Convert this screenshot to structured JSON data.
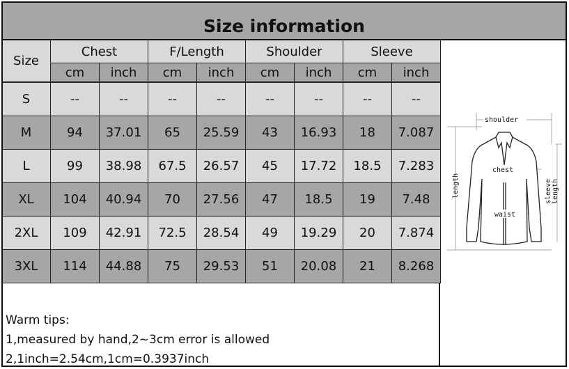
{
  "title": "Size information",
  "headers": {
    "size": "Size",
    "groups": [
      "Chest",
      "F/Length",
      "Shoulder",
      "Sleeve"
    ],
    "units": [
      "cm",
      "inch"
    ]
  },
  "rows": [
    {
      "size": "S",
      "values": [
        "--",
        "--",
        "--",
        "--",
        "--",
        "--",
        "--",
        "--"
      ]
    },
    {
      "size": "M",
      "values": [
        "94",
        "37.01",
        "65",
        "25.59",
        "43",
        "16.93",
        "18",
        "7.087"
      ]
    },
    {
      "size": "L",
      "values": [
        "99",
        "38.98",
        "67.5",
        "26.57",
        "45",
        "17.72",
        "18.5",
        "7.283"
      ]
    },
    {
      "size": "XL",
      "values": [
        "104",
        "40.94",
        "70",
        "27.56",
        "47",
        "18.5",
        "19",
        "7.48"
      ]
    },
    {
      "size": "2XL",
      "values": [
        "109",
        "42.91",
        "72.5",
        "28.54",
        "49",
        "19.29",
        "20",
        "7.874"
      ]
    },
    {
      "size": "3XL",
      "values": [
        "114",
        "44.88",
        "75",
        "29.53",
        "51",
        "20.08",
        "21",
        "8.268"
      ]
    }
  ],
  "diagram": {
    "shoulder": "shoulder",
    "chest": "chest",
    "waist": "waist",
    "length": "length",
    "sleeve": "sleeve",
    "sleeve_length": "length"
  },
  "notes": [
    "Warm tips:",
    "1,measured by hand,2~3cm error is allowed",
    "2,1inch=2.54cm,1cm=0.3937inch"
  ],
  "colors": {
    "light": "#d9d9d9",
    "dark": "#a6a6a6"
  }
}
